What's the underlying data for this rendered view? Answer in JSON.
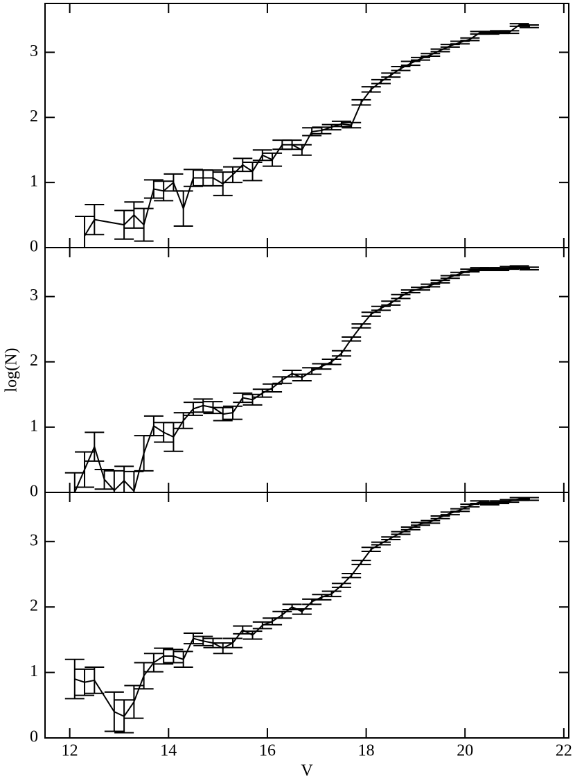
{
  "chart_data": [
    {
      "type": "line",
      "show_xtick_labels": false,
      "x": [
        12.3,
        12.5,
        13.1,
        13.3,
        13.5,
        13.7,
        13.9,
        14.1,
        14.3,
        14.5,
        14.7,
        14.9,
        15.1,
        15.3,
        15.5,
        15.7,
        15.9,
        16.1,
        16.3,
        16.5,
        16.7,
        16.9,
        17.1,
        17.3,
        17.5,
        17.7,
        17.9,
        18.1,
        18.3,
        18.5,
        18.7,
        18.9,
        19.1,
        19.3,
        19.5,
        19.7,
        19.9,
        20.1,
        20.3,
        20.5,
        20.7,
        20.9,
        21.1,
        21.3
      ],
      "series": [
        {
          "color": "#000000",
          "values": [
            0.18,
            0.43,
            0.35,
            0.5,
            0.35,
            0.9,
            0.87,
            1.0,
            0.6,
            1.07,
            1.07,
            1.07,
            0.98,
            1.12,
            1.27,
            1.17,
            1.42,
            1.35,
            1.58,
            1.58,
            1.5,
            1.78,
            1.8,
            1.85,
            1.9,
            1.88,
            2.23,
            2.43,
            2.55,
            2.65,
            2.75,
            2.83,
            2.9,
            2.96,
            3.03,
            3.1,
            3.15,
            3.2,
            3.3,
            3.3,
            3.31,
            3.31,
            3.42,
            3.4
          ],
          "errors": [
            0.3,
            0.23,
            0.22,
            0.2,
            0.25,
            0.14,
            0.15,
            0.13,
            0.27,
            0.13,
            0.12,
            0.12,
            0.18,
            0.12,
            0.1,
            0.14,
            0.08,
            0.1,
            0.07,
            0.07,
            0.08,
            0.06,
            0.05,
            0.04,
            0.04,
            0.04,
            0.04,
            0.04,
            0.03,
            0.03,
            0.03,
            0.03,
            0.02,
            0.02,
            0.02,
            0.02,
            0.02,
            0.02,
            0.02,
            0.02,
            0.02,
            0.02,
            0.02,
            0.02
          ]
        }
      ],
      "xlim": [
        11.5,
        22.1
      ],
      "ylim": [
        0,
        3.75
      ],
      "xticks": [
        12,
        14,
        16,
        18,
        20,
        22
      ],
      "yticks": [
        0,
        1,
        2,
        3
      ]
    },
    {
      "type": "line",
      "show_xtick_labels": false,
      "y_label": "log(N)",
      "x": [
        12.1,
        12.3,
        12.5,
        12.7,
        12.9,
        13.1,
        13.3,
        13.5,
        13.7,
        13.9,
        14.1,
        14.3,
        14.5,
        14.7,
        14.9,
        15.1,
        15.3,
        15.5,
        15.7,
        15.9,
        16.1,
        16.3,
        16.5,
        16.7,
        16.9,
        17.1,
        17.3,
        17.5,
        17.7,
        17.9,
        18.1,
        18.3,
        18.5,
        18.7,
        18.9,
        19.1,
        19.3,
        19.5,
        19.7,
        19.9,
        20.1,
        20.3,
        20.5,
        20.7,
        20.9,
        21.1,
        21.3
      ],
      "series": [
        {
          "color": "#000000",
          "values": [
            0,
            0.35,
            0.7,
            0.2,
            0.03,
            0.18,
            0.02,
            0.6,
            1.02,
            0.92,
            0.85,
            1.1,
            1.28,
            1.33,
            1.3,
            1.2,
            1.22,
            1.45,
            1.42,
            1.52,
            1.6,
            1.72,
            1.82,
            1.76,
            1.86,
            1.93,
            2.0,
            2.13,
            2.35,
            2.55,
            2.73,
            2.82,
            2.9,
            3.0,
            3.08,
            3.12,
            3.17,
            3.23,
            3.3,
            3.35,
            3.4,
            3.42,
            3.42,
            3.42,
            3.44,
            3.45,
            3.43
          ],
          "errors": [
            0.3,
            0.27,
            0.22,
            0.15,
            0.3,
            0.22,
            0.3,
            0.27,
            0.15,
            0.15,
            0.22,
            0.12,
            0.1,
            0.1,
            0.09,
            0.1,
            0.1,
            0.07,
            0.08,
            0.06,
            0.06,
            0.05,
            0.05,
            0.05,
            0.05,
            0.04,
            0.04,
            0.04,
            0.03,
            0.03,
            0.03,
            0.03,
            0.03,
            0.03,
            0.02,
            0.02,
            0.02,
            0.02,
            0.02,
            0.02,
            0.02,
            0.02,
            0.02,
            0.02,
            0.02,
            0.02,
            0.02
          ]
        }
      ],
      "xlim": [
        11.5,
        22.1
      ],
      "ylim": [
        0,
        3.75
      ],
      "xticks": [
        12,
        14,
        16,
        18,
        20,
        22
      ],
      "yticks": [
        0,
        1,
        2,
        3
      ]
    },
    {
      "type": "line",
      "show_xtick_labels": true,
      "x_label": "V",
      "x": [
        12.1,
        12.3,
        12.5,
        12.9,
        13.1,
        13.3,
        13.5,
        13.7,
        13.9,
        14.1,
        14.3,
        14.5,
        14.7,
        14.9,
        15.1,
        15.3,
        15.5,
        15.7,
        15.9,
        16.1,
        16.3,
        16.5,
        16.7,
        16.9,
        17.1,
        17.3,
        17.5,
        17.7,
        17.9,
        18.1,
        18.3,
        18.5,
        18.7,
        18.9,
        19.1,
        19.3,
        19.5,
        19.7,
        19.9,
        20.1,
        20.3,
        20.5,
        20.7,
        20.9,
        21.1,
        21.3
      ],
      "series": [
        {
          "color": "#000000",
          "values": [
            0.9,
            0.85,
            0.88,
            0.4,
            0.33,
            0.55,
            0.95,
            1.15,
            1.25,
            1.25,
            1.2,
            1.52,
            1.48,
            1.45,
            1.37,
            1.45,
            1.65,
            1.57,
            1.72,
            1.78,
            1.88,
            2.0,
            1.93,
            2.08,
            2.15,
            2.2,
            2.33,
            2.48,
            2.68,
            2.88,
            2.97,
            3.05,
            3.13,
            3.2,
            3.27,
            3.3,
            3.37,
            3.43,
            3.48,
            3.55,
            3.6,
            3.58,
            3.6,
            3.62,
            3.65,
            3.65
          ],
          "errors": [
            0.3,
            0.2,
            0.2,
            0.3,
            0.25,
            0.25,
            0.2,
            0.14,
            0.12,
            0.1,
            0.12,
            0.08,
            0.07,
            0.07,
            0.08,
            0.07,
            0.06,
            0.06,
            0.05,
            0.05,
            0.05,
            0.04,
            0.04,
            0.04,
            0.04,
            0.04,
            0.03,
            0.03,
            0.03,
            0.03,
            0.02,
            0.02,
            0.02,
            0.02,
            0.02,
            0.02,
            0.02,
            0.02,
            0.02,
            0.02,
            0.02,
            0.02,
            0.02,
            0.02,
            0.02,
            0.02
          ]
        }
      ],
      "xlim": [
        11.5,
        22.1
      ],
      "ylim": [
        0,
        3.75
      ],
      "xticks": [
        12,
        14,
        16,
        18,
        20,
        22
      ],
      "yticks": [
        0,
        1,
        2,
        3
      ]
    }
  ]
}
